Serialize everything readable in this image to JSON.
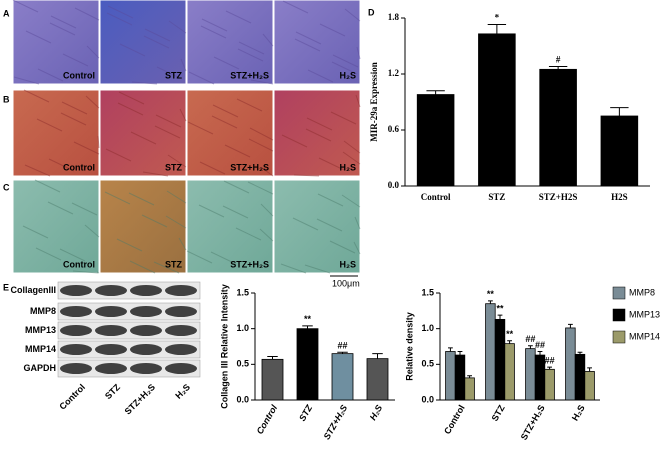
{
  "panel_labels": [
    "A",
    "B",
    "C",
    "D",
    "E"
  ],
  "micrographs": [
    [
      "Control",
      "STZ",
      "STZ+H₂S",
      "H₂S"
    ],
    [
      "Control",
      "STZ",
      "STZ+H₂S",
      "H₂S"
    ],
    [
      "Control",
      "STZ",
      "STZ+H₂S",
      "H₂S"
    ]
  ],
  "scale_bar": "100μm",
  "blot": {
    "bands": [
      "CollagenIII",
      "MMP8",
      "MMP13",
      "MMP14",
      "GAPDH"
    ],
    "lanes": [
      "Control",
      "STZ",
      "STZ+H₂S",
      "H₂S"
    ]
  },
  "chart_data": [
    {
      "type": "bar",
      "y_label": "MIR-29a Expression",
      "categories": [
        "Control",
        "STZ",
        "STZ+H2S",
        "H2S"
      ],
      "values": [
        0.98,
        1.63,
        1.25,
        0.75
      ],
      "errors": [
        0.04,
        0.1,
        0.03,
        0.09
      ],
      "annotations": [
        null,
        "*",
        "#",
        null
      ],
      "colors": [
        "#000000",
        "#000000",
        "#000000",
        "#000000"
      ],
      "ylim": [
        0,
        1.8
      ],
      "yticks": [
        {
          "value": 0,
          "label": "0.0"
        },
        0.6,
        1.2,
        1.8
      ]
    },
    {
      "type": "bar",
      "y_label": "Collagen III Relative Intensity",
      "categories": [
        "Control",
        "STZ",
        "STZ+H₂S",
        "H₂S"
      ],
      "values": [
        0.57,
        1.0,
        0.65,
        0.58
      ],
      "errors": [
        0.04,
        0.04,
        0.02,
        0.07
      ],
      "annotations": [
        null,
        "**",
        "##",
        null
      ],
      "colors": [
        "#555555",
        "#000000",
        "#6f8fa0",
        "#555555"
      ],
      "ylim": [
        0,
        1.5
      ],
      "yticks": [
        {
          "value": 0,
          "label": "0.0"
        },
        0.5,
        {
          "value": 1,
          "label": "1.0"
        },
        1.5
      ]
    },
    {
      "type": "bar",
      "y_label": "Relative density",
      "categories": [
        "Control",
        "STZ",
        "STZ+H₂S",
        "H₂S"
      ],
      "series": [
        {
          "name": "MMP8",
          "color": "#7a8c96",
          "values": [
            0.68,
            1.35,
            0.72,
            1.01
          ],
          "errors": [
            0.05,
            0.04,
            0.04,
            0.05
          ],
          "annotations": [
            null,
            "**",
            "##",
            null
          ]
        },
        {
          "name": "MMP13",
          "color": "#000000",
          "values": [
            0.63,
            1.13,
            0.63,
            0.64
          ],
          "errors": [
            0.05,
            0.06,
            0.05,
            0.03
          ],
          "annotations": [
            null,
            "**",
            "##",
            null
          ]
        },
        {
          "name": "MMP14",
          "color": "#9b9a6a",
          "values": [
            0.31,
            0.79,
            0.43,
            0.4
          ],
          "errors": [
            0.03,
            0.04,
            0.03,
            0.05
          ],
          "annotations": [
            null,
            "**",
            "##",
            null
          ]
        }
      ],
      "ylim": [
        0,
        1.5
      ],
      "yticks": [
        {
          "value": 0,
          "label": "0.0"
        },
        0.5,
        {
          "value": 1,
          "label": "1.0"
        },
        1.5
      ]
    }
  ]
}
